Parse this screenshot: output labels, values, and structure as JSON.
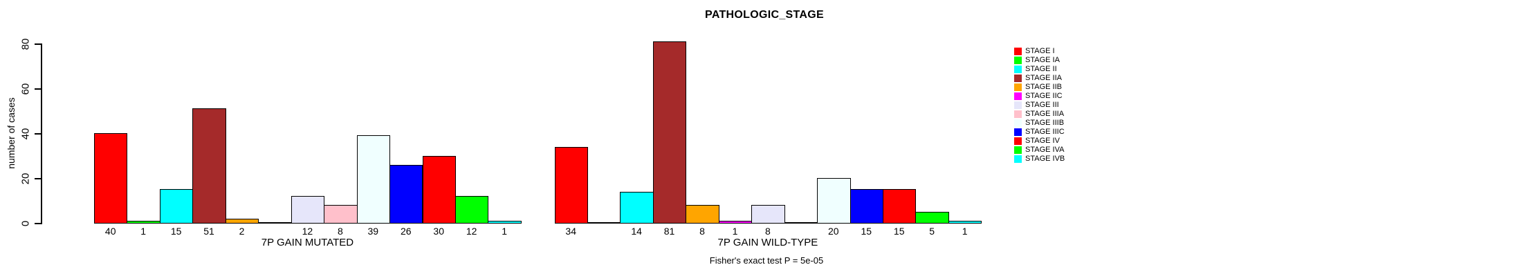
{
  "chart_data": {
    "type": "bar",
    "title": "PATHOLOGIC_STAGE",
    "ylabel": "number of cases",
    "xlabel": "",
    "ylim": [
      0,
      80
    ],
    "yticks": [
      0,
      20,
      40,
      60,
      80
    ],
    "grid": false,
    "legend_position": "right",
    "categories": [
      "STAGE I",
      "STAGE IA",
      "STAGE II",
      "STAGE IIA",
      "STAGE IIB",
      "STAGE IIC",
      "STAGE III",
      "STAGE IIIA",
      "STAGE IIIB",
      "STAGE IIIC",
      "STAGE IV",
      "STAGE IVA",
      "STAGE IVB"
    ],
    "colors": [
      "#FF0000",
      "#00FF00",
      "#00FFFF",
      "#A52A2A",
      "#FFA500",
      "#FF00FF",
      "#E6E6FA",
      "#FFC0CB",
      "#F0FFFF",
      "#0000FF",
      "#FF0000",
      "#00FF00",
      "#00FFFF"
    ],
    "series": [
      {
        "name": "7P GAIN MUTATED",
        "values": [
          40,
          1,
          15,
          51,
          2,
          0,
          12,
          8,
          39,
          26,
          30,
          12,
          1
        ]
      },
      {
        "name": "7P GAIN WILD-TYPE",
        "values": [
          34,
          0,
          14,
          81,
          8,
          1,
          8,
          0,
          20,
          15,
          15,
          5,
          1
        ]
      }
    ],
    "annotation": "Fisher's exact test P = 5e-05"
  }
}
